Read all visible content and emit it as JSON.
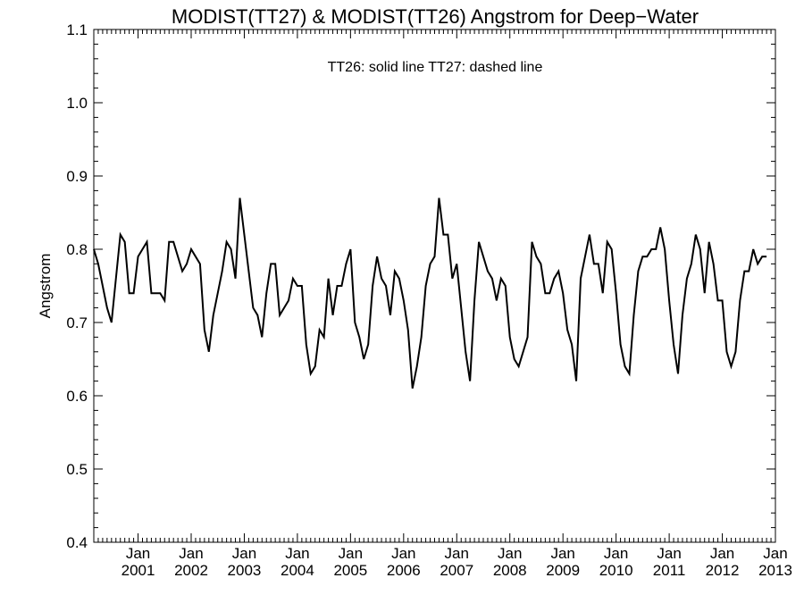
{
  "chart_data": {
    "type": "line",
    "title": "MODIST(TT27) & MODIST(TT26)  Angstrom for Deep−Water",
    "xlabel": "",
    "ylabel": "Angstrom",
    "annotation": "TT26: solid line   TT27: dashed line",
    "xlim": [
      "2000-03",
      "2013-01"
    ],
    "ylim": [
      0.4,
      1.1
    ],
    "y_ticks": [
      "0.4",
      "0.5",
      "0.6",
      "0.7",
      "0.8",
      "0.9",
      "1.0",
      "1.1"
    ],
    "y_tick_values": [
      0.4,
      0.5,
      0.6,
      0.7,
      0.8,
      0.9,
      1.0,
      1.1
    ],
    "x_ticks": [
      {
        "month": "Jan",
        "year": "2001",
        "date": "2001-01"
      },
      {
        "month": "Jan",
        "year": "2002",
        "date": "2002-01"
      },
      {
        "month": "Jan",
        "year": "2003",
        "date": "2003-01"
      },
      {
        "month": "Jan",
        "year": "2004",
        "date": "2004-01"
      },
      {
        "month": "Jan",
        "year": "2005",
        "date": "2005-01"
      },
      {
        "month": "Jan",
        "year": "2006",
        "date": "2006-01"
      },
      {
        "month": "Jan",
        "year": "2007",
        "date": "2007-01"
      },
      {
        "month": "Jan",
        "year": "2008",
        "date": "2008-01"
      },
      {
        "month": "Jan",
        "year": "2009",
        "date": "2009-01"
      },
      {
        "month": "Jan",
        "year": "2010",
        "date": "2010-01"
      },
      {
        "month": "Jan",
        "year": "2011",
        "date": "2011-01"
      },
      {
        "month": "Jan",
        "year": "2012",
        "date": "2012-01"
      },
      {
        "month": "Jan",
        "year": "2013",
        "date": "2013-01"
      }
    ],
    "grid": false,
    "series": [
      {
        "line_style": "solid",
        "color": "#000000",
        "start": "2000-03",
        "step": "1 month",
        "values": [
          0.8,
          0.78,
          0.75,
          0.72,
          0.7,
          0.76,
          0.82,
          0.81,
          0.74,
          0.74,
          0.79,
          0.8,
          0.81,
          0.74,
          0.74,
          0.74,
          0.73,
          0.81,
          0.81,
          0.79,
          0.77,
          0.78,
          0.8,
          0.79,
          0.78,
          0.69,
          0.66,
          0.71,
          0.74,
          0.77,
          0.81,
          0.8,
          0.76,
          0.87,
          0.82,
          0.77,
          0.72,
          0.71,
          0.68,
          0.74,
          0.78,
          0.78,
          0.71,
          0.72,
          0.73,
          0.76,
          0.75,
          0.75,
          0.67,
          0.63,
          0.64,
          0.69,
          0.68,
          0.76,
          0.71,
          0.75,
          0.75,
          0.78,
          0.8,
          0.7,
          0.68,
          0.65,
          0.67,
          0.75,
          0.79,
          0.76,
          0.75,
          0.71,
          0.77,
          0.76,
          0.73,
          0.69,
          0.61,
          0.64,
          0.68,
          0.75,
          0.78,
          0.79,
          0.87,
          0.82,
          0.82,
          0.76,
          0.78,
          0.72,
          0.66,
          0.62,
          0.73,
          0.81,
          0.79,
          0.77,
          0.76,
          0.73,
          0.76,
          0.75,
          0.68,
          0.65,
          0.64,
          0.66,
          0.68,
          0.81,
          0.79,
          0.78,
          0.74,
          0.74,
          0.76,
          0.77,
          0.74,
          0.69,
          0.67,
          0.62,
          0.76,
          0.79,
          0.82,
          0.78,
          0.78,
          0.74,
          0.81,
          0.8,
          0.74,
          0.67,
          0.64,
          0.63,
          0.71,
          0.77,
          0.79,
          0.79,
          0.8,
          0.8,
          0.83,
          0.8,
          0.73,
          0.67,
          0.63,
          0.71,
          0.76,
          0.78,
          0.82,
          0.8,
          0.74,
          0.81,
          0.78,
          0.73,
          0.73,
          0.66,
          0.64,
          0.66,
          0.73,
          0.77,
          0.77,
          0.8,
          0.78,
          0.79,
          0.79
        ]
      }
    ]
  }
}
